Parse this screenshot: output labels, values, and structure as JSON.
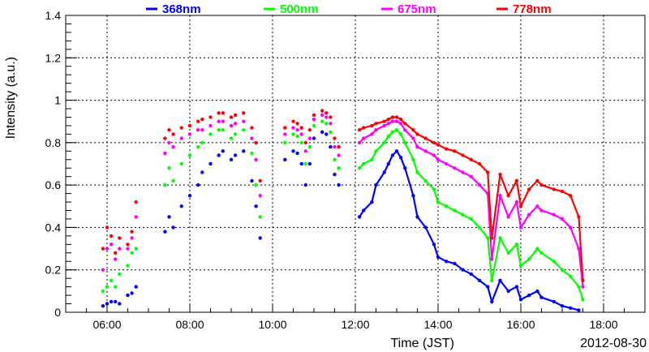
{
  "chart_data": {
    "type": "scatter",
    "title": "",
    "xlabel": "Time (JST)",
    "ylabel": "Intensity (a.u.)",
    "date_label": "2012-08-30",
    "x_unit": "hours (JST)",
    "xlim": [
      5.0,
      19.0
    ],
    "ylim": [
      0,
      1.4
    ],
    "x_ticks": [
      6,
      8,
      10,
      12,
      14,
      16,
      18
    ],
    "x_tick_labels": [
      "06:00",
      "08:00",
      "10:00",
      "12:00",
      "14:00",
      "16:00",
      "18:00"
    ],
    "y_ticks": [
      0,
      0.2,
      0.4,
      0.6,
      0.8,
      1,
      1.2,
      1.4
    ],
    "y_tick_labels": [
      "0",
      "0.2",
      "0.4",
      "0.6",
      "0.8",
      "1",
      "1.2",
      "1.4"
    ],
    "grid": true,
    "legend_position": "top",
    "series": [
      {
        "name": "368nm",
        "color": "#0000ff",
        "points": [
          [
            5.9,
            0.03
          ],
          [
            6.0,
            0.04
          ],
          [
            6.1,
            0.05
          ],
          [
            6.2,
            0.05
          ],
          [
            6.3,
            0.04
          ],
          [
            6.5,
            0.08
          ],
          [
            6.6,
            0.09
          ],
          [
            6.7,
            0.12
          ],
          [
            7.4,
            0.38
          ],
          [
            7.5,
            0.45
          ],
          [
            7.6,
            0.4
          ],
          [
            7.8,
            0.5
          ],
          [
            8.0,
            0.55
          ],
          [
            8.2,
            0.6
          ],
          [
            8.3,
            0.66
          ],
          [
            8.5,
            0.7
          ],
          [
            8.7,
            0.74
          ],
          [
            8.8,
            0.76
          ],
          [
            9.0,
            0.72
          ],
          [
            9.1,
            0.74
          ],
          [
            9.3,
            0.76
          ],
          [
            9.5,
            0.62
          ],
          [
            9.6,
            0.5
          ],
          [
            9.7,
            0.35
          ],
          [
            10.3,
            0.72
          ],
          [
            10.5,
            0.76
          ],
          [
            10.6,
            0.75
          ],
          [
            10.7,
            0.7
          ],
          [
            10.8,
            0.6
          ],
          [
            10.9,
            0.7
          ],
          [
            11.0,
            0.82
          ],
          [
            11.2,
            0.85
          ],
          [
            11.3,
            0.84
          ],
          [
            11.4,
            0.78
          ],
          [
            11.5,
            0.65
          ],
          [
            11.6,
            0.6
          ],
          [
            12.1,
            0.45
          ],
          [
            12.2,
            0.48
          ],
          [
            12.4,
            0.52
          ],
          [
            12.5,
            0.6
          ],
          [
            12.7,
            0.66
          ],
          [
            12.8,
            0.7
          ],
          [
            12.9,
            0.74
          ],
          [
            13.0,
            0.76
          ],
          [
            13.1,
            0.73
          ],
          [
            13.2,
            0.68
          ],
          [
            13.4,
            0.55
          ],
          [
            13.5,
            0.45
          ],
          [
            13.7,
            0.4
          ],
          [
            13.9,
            0.32
          ],
          [
            14.0,
            0.26
          ],
          [
            14.2,
            0.24
          ],
          [
            14.4,
            0.23
          ],
          [
            14.6,
            0.2
          ],
          [
            14.8,
            0.18
          ],
          [
            15.0,
            0.15
          ],
          [
            15.2,
            0.12
          ],
          [
            15.3,
            0.05
          ],
          [
            15.5,
            0.15
          ],
          [
            15.7,
            0.1
          ],
          [
            15.9,
            0.12
          ],
          [
            16.0,
            0.06
          ],
          [
            16.2,
            0.08
          ],
          [
            16.4,
            0.1
          ],
          [
            16.5,
            0.07
          ],
          [
            16.8,
            0.05
          ],
          [
            17.0,
            0.03
          ],
          [
            17.2,
            0.02
          ],
          [
            17.4,
            0.01
          ]
        ]
      },
      {
        "name": "500nm",
        "color": "#00ff00",
        "points": [
          [
            5.9,
            0.1
          ],
          [
            6.0,
            0.12
          ],
          [
            6.1,
            0.15
          ],
          [
            6.2,
            0.12
          ],
          [
            6.3,
            0.18
          ],
          [
            6.5,
            0.22
          ],
          [
            6.6,
            0.28
          ],
          [
            6.7,
            0.3
          ],
          [
            7.4,
            0.6
          ],
          [
            7.5,
            0.68
          ],
          [
            7.6,
            0.62
          ],
          [
            7.8,
            0.7
          ],
          [
            8.0,
            0.74
          ],
          [
            8.2,
            0.78
          ],
          [
            8.3,
            0.8
          ],
          [
            8.5,
            0.84
          ],
          [
            8.7,
            0.86
          ],
          [
            8.8,
            0.86
          ],
          [
            9.0,
            0.82
          ],
          [
            9.1,
            0.84
          ],
          [
            9.3,
            0.86
          ],
          [
            9.5,
            0.75
          ],
          [
            9.6,
            0.6
          ],
          [
            9.7,
            0.45
          ],
          [
            10.3,
            0.8
          ],
          [
            10.5,
            0.84
          ],
          [
            10.6,
            0.83
          ],
          [
            10.7,
            0.8
          ],
          [
            10.8,
            0.7
          ],
          [
            10.9,
            0.78
          ],
          [
            11.0,
            0.88
          ],
          [
            11.2,
            0.9
          ],
          [
            11.3,
            0.89
          ],
          [
            11.4,
            0.85
          ],
          [
            11.5,
            0.72
          ],
          [
            11.6,
            0.68
          ],
          [
            12.1,
            0.68
          ],
          [
            12.2,
            0.7
          ],
          [
            12.4,
            0.72
          ],
          [
            12.5,
            0.76
          ],
          [
            12.7,
            0.8
          ],
          [
            12.8,
            0.83
          ],
          [
            12.9,
            0.85
          ],
          [
            13.0,
            0.86
          ],
          [
            13.1,
            0.84
          ],
          [
            13.2,
            0.8
          ],
          [
            13.4,
            0.72
          ],
          [
            13.5,
            0.66
          ],
          [
            13.7,
            0.62
          ],
          [
            13.9,
            0.58
          ],
          [
            14.0,
            0.52
          ],
          [
            14.2,
            0.5
          ],
          [
            14.4,
            0.48
          ],
          [
            14.6,
            0.46
          ],
          [
            14.8,
            0.44
          ],
          [
            15.0,
            0.4
          ],
          [
            15.2,
            0.35
          ],
          [
            15.3,
            0.15
          ],
          [
            15.5,
            0.35
          ],
          [
            15.7,
            0.28
          ],
          [
            15.9,
            0.32
          ],
          [
            16.0,
            0.22
          ],
          [
            16.2,
            0.25
          ],
          [
            16.4,
            0.3
          ],
          [
            16.5,
            0.28
          ],
          [
            16.8,
            0.24
          ],
          [
            17.0,
            0.2
          ],
          [
            17.2,
            0.17
          ],
          [
            17.4,
            0.12
          ],
          [
            17.5,
            0.06
          ]
        ]
      },
      {
        "name": "675nm",
        "color": "#ff00ff",
        "points": [
          [
            5.9,
            0.2
          ],
          [
            6.0,
            0.3
          ],
          [
            6.1,
            0.32
          ],
          [
            6.2,
            0.25
          ],
          [
            6.3,
            0.3
          ],
          [
            6.5,
            0.3
          ],
          [
            6.6,
            0.35
          ],
          [
            6.7,
            0.45
          ],
          [
            7.4,
            0.75
          ],
          [
            7.5,
            0.8
          ],
          [
            7.6,
            0.78
          ],
          [
            7.8,
            0.82
          ],
          [
            8.0,
            0.84
          ],
          [
            8.2,
            0.86
          ],
          [
            8.3,
            0.86
          ],
          [
            8.5,
            0.88
          ],
          [
            8.7,
            0.9
          ],
          [
            8.8,
            0.9
          ],
          [
            9.0,
            0.88
          ],
          [
            9.1,
            0.89
          ],
          [
            9.3,
            0.9
          ],
          [
            9.5,
            0.82
          ],
          [
            9.6,
            0.72
          ],
          [
            9.7,
            0.55
          ],
          [
            10.3,
            0.84
          ],
          [
            10.5,
            0.87
          ],
          [
            10.6,
            0.86
          ],
          [
            10.7,
            0.84
          ],
          [
            10.8,
            0.76
          ],
          [
            10.9,
            0.82
          ],
          [
            11.0,
            0.91
          ],
          [
            11.2,
            0.93
          ],
          [
            11.3,
            0.92
          ],
          [
            11.4,
            0.89
          ],
          [
            11.5,
            0.78
          ],
          [
            11.6,
            0.74
          ],
          [
            12.1,
            0.8
          ],
          [
            12.2,
            0.82
          ],
          [
            12.4,
            0.84
          ],
          [
            12.5,
            0.86
          ],
          [
            12.7,
            0.88
          ],
          [
            12.8,
            0.89
          ],
          [
            12.9,
            0.9
          ],
          [
            13.0,
            0.9
          ],
          [
            13.1,
            0.89
          ],
          [
            13.2,
            0.86
          ],
          [
            13.4,
            0.82
          ],
          [
            13.5,
            0.78
          ],
          [
            13.7,
            0.76
          ],
          [
            13.9,
            0.74
          ],
          [
            14.0,
            0.72
          ],
          [
            14.2,
            0.7
          ],
          [
            14.4,
            0.68
          ],
          [
            14.6,
            0.66
          ],
          [
            14.8,
            0.64
          ],
          [
            15.0,
            0.6
          ],
          [
            15.2,
            0.56
          ],
          [
            15.3,
            0.25
          ],
          [
            15.5,
            0.55
          ],
          [
            15.7,
            0.45
          ],
          [
            15.9,
            0.52
          ],
          [
            16.0,
            0.4
          ],
          [
            16.2,
            0.46
          ],
          [
            16.4,
            0.5
          ],
          [
            16.5,
            0.48
          ],
          [
            16.8,
            0.46
          ],
          [
            17.0,
            0.44
          ],
          [
            17.2,
            0.4
          ],
          [
            17.4,
            0.3
          ],
          [
            17.5,
            0.12
          ]
        ]
      },
      {
        "name": "778nm",
        "color": "#ff0000",
        "points": [
          [
            5.9,
            0.3
          ],
          [
            6.0,
            0.4
          ],
          [
            6.1,
            0.36
          ],
          [
            6.2,
            0.28
          ],
          [
            6.3,
            0.35
          ],
          [
            6.5,
            0.32
          ],
          [
            6.6,
            0.38
          ],
          [
            6.7,
            0.52
          ],
          [
            7.4,
            0.82
          ],
          [
            7.5,
            0.86
          ],
          [
            7.6,
            0.84
          ],
          [
            7.8,
            0.87
          ],
          [
            8.0,
            0.88
          ],
          [
            8.2,
            0.9
          ],
          [
            8.3,
            0.91
          ],
          [
            8.5,
            0.92
          ],
          [
            8.7,
            0.94
          ],
          [
            8.8,
            0.94
          ],
          [
            9.0,
            0.92
          ],
          [
            9.1,
            0.93
          ],
          [
            9.3,
            0.94
          ],
          [
            9.5,
            0.87
          ],
          [
            9.6,
            0.8
          ],
          [
            9.7,
            0.62
          ],
          [
            10.3,
            0.87
          ],
          [
            10.5,
            0.9
          ],
          [
            10.6,
            0.89
          ],
          [
            10.7,
            0.87
          ],
          [
            10.8,
            0.8
          ],
          [
            10.9,
            0.86
          ],
          [
            11.0,
            0.93
          ],
          [
            11.2,
            0.95
          ],
          [
            11.3,
            0.94
          ],
          [
            11.4,
            0.92
          ],
          [
            11.5,
            0.82
          ],
          [
            11.6,
            0.78
          ],
          [
            12.1,
            0.86
          ],
          [
            12.2,
            0.87
          ],
          [
            12.4,
            0.88
          ],
          [
            12.5,
            0.89
          ],
          [
            12.7,
            0.9
          ],
          [
            12.8,
            0.91
          ],
          [
            12.9,
            0.92
          ],
          [
            13.0,
            0.92
          ],
          [
            13.1,
            0.91
          ],
          [
            13.2,
            0.89
          ],
          [
            13.4,
            0.86
          ],
          [
            13.5,
            0.84
          ],
          [
            13.7,
            0.82
          ],
          [
            13.9,
            0.8
          ],
          [
            14.0,
            0.79
          ],
          [
            14.2,
            0.77
          ],
          [
            14.4,
            0.76
          ],
          [
            14.6,
            0.74
          ],
          [
            14.8,
            0.72
          ],
          [
            15.0,
            0.7
          ],
          [
            15.2,
            0.66
          ],
          [
            15.3,
            0.35
          ],
          [
            15.5,
            0.65
          ],
          [
            15.7,
            0.55
          ],
          [
            15.9,
            0.62
          ],
          [
            16.0,
            0.5
          ],
          [
            16.2,
            0.58
          ],
          [
            16.4,
            0.62
          ],
          [
            16.5,
            0.6
          ],
          [
            16.8,
            0.58
          ],
          [
            17.0,
            0.57
          ],
          [
            17.2,
            0.55
          ],
          [
            17.4,
            0.45
          ],
          [
            17.5,
            0.15
          ]
        ]
      }
    ]
  }
}
